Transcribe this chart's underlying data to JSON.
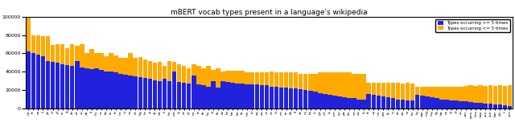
{
  "title": "mBERT vocab types present in a language's wikipedia",
  "legend_labels": [
    "Types occurring >= 5 times",
    "Types occurring <= 5 times"
  ],
  "blue_color": "#2222dd",
  "orange_color": "#ffaa00",
  "ylim": [
    0,
    100000
  ],
  "yticks": [
    0,
    20000,
    40000,
    60000,
    80000,
    100000
  ],
  "figsize": [
    6.4,
    1.73
  ],
  "dpi": 100,
  "langs": [
    "de",
    "fr",
    "es",
    "it",
    "pt",
    "nl",
    "pl",
    "ru",
    "ja",
    "zh",
    "ar",
    "sv",
    "uk",
    "fi",
    "hu",
    "cs",
    "ko",
    "ro",
    "tr",
    "no",
    "vi",
    "ca",
    "id",
    "bg",
    "hr",
    "sr",
    "sk",
    "da",
    "lt",
    "he",
    "ms",
    "sl",
    "et",
    "gl",
    "eu",
    "la",
    "th",
    "hy",
    "el",
    "fa",
    "az",
    "ka",
    "be",
    "bn",
    "ta",
    "mk",
    "lv",
    "sq",
    "eo",
    "ur",
    "oc",
    "hi",
    "mr",
    "te",
    "kk",
    "tl",
    "af",
    "cy",
    "bs",
    "is",
    "ga",
    "ml",
    "si",
    "mn",
    "gu",
    "pa",
    "kn",
    "ne",
    "sw",
    "lb",
    "tt",
    "uz",
    "nn",
    "ast",
    "fy",
    "io",
    "br",
    "an",
    "ia",
    "ku",
    "ky",
    "war",
    "mg",
    "my",
    "tg",
    "ba",
    "os",
    "yi",
    "jv",
    "su",
    "vec",
    "pms",
    "lmo",
    "nap",
    "scn",
    "sco",
    "bar",
    "als",
    "li",
    "ace"
  ],
  "blue_vals": [
    62000,
    60000,
    59000,
    57000,
    52000,
    51000,
    50000,
    48000,
    47000,
    46000,
    52000,
    45000,
    44000,
    43000,
    44000,
    42000,
    40000,
    40000,
    39000,
    38000,
    37000,
    36000,
    35000,
    34000,
    33000,
    32000,
    31000,
    30000,
    32000,
    30000,
    40000,
    29000,
    28000,
    27000,
    36000,
    26000,
    25000,
    24000,
    30000,
    23000,
    30000,
    29000,
    28000,
    27000,
    27000,
    26000,
    26000,
    26000,
    25000,
    25000,
    24000,
    24000,
    23000,
    23000,
    22000,
    22000,
    21000,
    20000,
    19000,
    18000,
    17000,
    16000,
    15000,
    14000,
    13000,
    12000,
    11000,
    11000,
    10000,
    9500,
    16000,
    15000,
    14000,
    13000,
    12000,
    11000,
    10000,
    9500,
    9000,
    8500,
    15000,
    14000,
    13000,
    12000,
    11000,
    10000,
    9500,
    9000,
    8500,
    8000,
    7500,
    7000,
    6500,
    6000,
    5500,
    5000,
    4500,
    4000,
    3500,
    3000
  ],
  "orange_vals": [
    48000,
    20000,
    21000,
    22000,
    27000,
    18000,
    20000,
    22000,
    19000,
    24000,
    16000,
    25000,
    16000,
    22000,
    16000,
    18000,
    17000,
    20000,
    19000,
    17000,
    18000,
    24000,
    20000,
    22000,
    20000,
    20000,
    19000,
    21000,
    14000,
    22000,
    11000,
    19000,
    18000,
    17000,
    12000,
    20000,
    19000,
    22000,
    12000,
    21000,
    10000,
    12000,
    13000,
    14000,
    14000,
    13000,
    13000,
    13000,
    14000,
    14000,
    16000,
    15000,
    16000,
    16000,
    17000,
    17000,
    17000,
    18000,
    19000,
    20000,
    22000,
    23000,
    24000,
    25000,
    26000,
    27000,
    28000,
    27000,
    28000,
    28000,
    12000,
    13000,
    14000,
    15000,
    16000,
    17000,
    18000,
    18000,
    19000,
    19000,
    9000,
    10000,
    11000,
    12000,
    13000,
    14000,
    14000,
    15000,
    15000,
    16000,
    17000,
    18000,
    18000,
    19000,
    19000,
    20000,
    20000,
    21000,
    21000,
    22000
  ]
}
